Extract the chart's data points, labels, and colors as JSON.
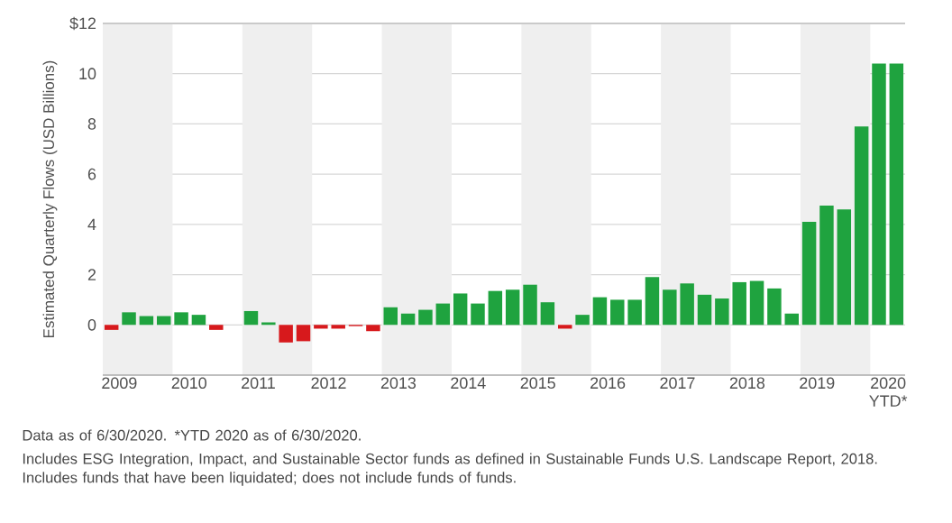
{
  "chart_data": {
    "type": "bar",
    "ylabel": "Estimated Quarterly Flows (USD Billions)",
    "categories": [
      "2009",
      null,
      null,
      null,
      "2010",
      null,
      null,
      null,
      "2011",
      null,
      null,
      null,
      "2012",
      null,
      null,
      null,
      "2013",
      null,
      null,
      null,
      "2014",
      null,
      null,
      null,
      "2015",
      null,
      null,
      null,
      "2016",
      null,
      null,
      null,
      "2017",
      null,
      null,
      null,
      "2018",
      null,
      null,
      null,
      "2019",
      null,
      null,
      null,
      "2020\nYTD*",
      null
    ],
    "values": [
      -0.2,
      0.5,
      0.35,
      0.35,
      0.5,
      0.4,
      -0.2,
      null,
      0.55,
      0.1,
      -0.7,
      -0.65,
      -0.15,
      -0.15,
      -0.05,
      -0.25,
      0.7,
      0.45,
      0.6,
      0.85,
      1.25,
      0.85,
      1.35,
      1.4,
      1.6,
      0.9,
      -0.15,
      0.4,
      1.1,
      1.0,
      1.0,
      1.9,
      1.4,
      1.65,
      1.2,
      1.05,
      1.7,
      1.75,
      1.45,
      0.45,
      4.1,
      4.75,
      4.6,
      7.9,
      10.4,
      10.4
    ],
    "colors": [
      "#d7191c",
      "#1fa33f",
      "#1fa33f",
      "#1fa33f",
      "#1fa33f",
      "#1fa33f",
      "#d7191c",
      "#1fa33f",
      "#1fa33f",
      "#1fa33f",
      "#d7191c",
      "#d7191c",
      "#d7191c",
      "#d7191c",
      "#d7191c",
      "#d7191c",
      "#1fa33f",
      "#1fa33f",
      "#1fa33f",
      "#1fa33f",
      "#1fa33f",
      "#1fa33f",
      "#1fa33f",
      "#1fa33f",
      "#1fa33f",
      "#1fa33f",
      "#d7191c",
      "#1fa33f",
      "#1fa33f",
      "#1fa33f",
      "#1fa33f",
      "#1fa33f",
      "#1fa33f",
      "#1fa33f",
      "#1fa33f",
      "#1fa33f",
      "#1fa33f",
      "#1fa33f",
      "#1fa33f",
      "#1fa33f",
      "#1fa33f",
      "#1fa33f",
      "#1fa33f",
      "#1fa33f",
      "#1fa33f",
      "#1fa33f"
    ],
    "ylim": [
      -2,
      12
    ],
    "yticks": [
      0,
      2,
      4,
      6,
      8,
      10,
      {
        "value": 12,
        "label": "$12"
      }
    ],
    "grid": "y",
    "annotations": [
      "Data as of 6/30/2020. *YTD 2020 as of 6/30/2020.",
      "Includes ESG Integration, Impact, and Sustainable Sector funds as defined in Sustainable Funds U.S. Landscape Report, 2018. Includes funds that have been liquidated; does not include funds of funds."
    ]
  }
}
